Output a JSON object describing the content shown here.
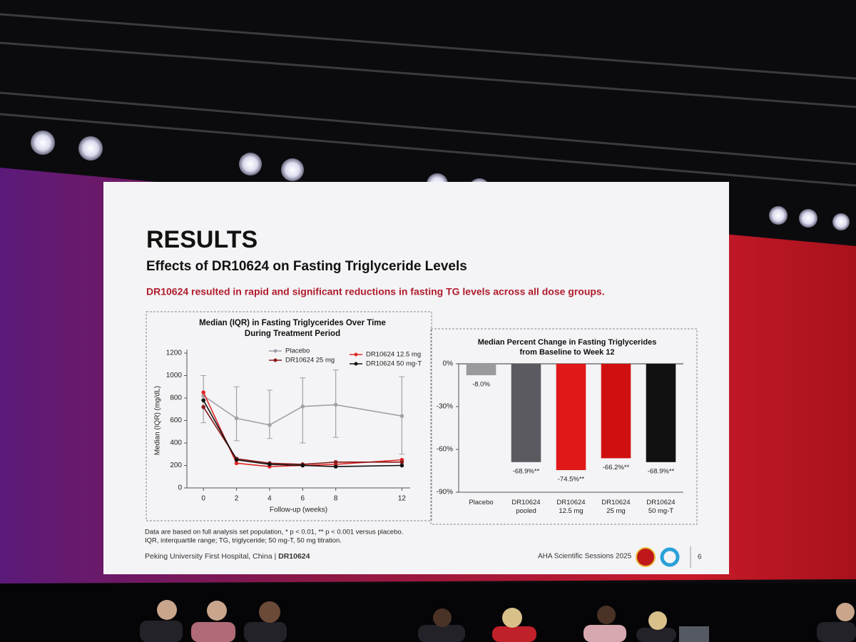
{
  "slide": {
    "heading": "RESULTS",
    "subtitle": "Effects of DR10624 on Fasting Triglyceride Levels",
    "highlight": "DR10624 resulted in rapid and significant reductions in fasting TG levels across all dose groups.",
    "footnotes": [
      "Data are based on full analysis set population, * p < 0.01, ** p < 0.001 versus placebo.",
      "IQR, interquartile range; TG, triglyceride; 50 mg-T, 50 mg titration."
    ],
    "footer_left": "Peking University First Hospital, China | ",
    "footer_left_bold": "DR10624",
    "footer_right": "AHA Scientific Sessions 2025",
    "page_number": "6"
  },
  "chart_data": [
    {
      "type": "line",
      "title": "Median (IQR) in Fasting Triglycerides Over Time",
      "subtitle": "During Treatment Period",
      "x_label": "Follow-up (weeks)",
      "y_label": "Median (IQR) (mg/dL)",
      "x": [
        0,
        2,
        4,
        6,
        8,
        12
      ],
      "xlim": [
        -1,
        12.5
      ],
      "xticks": [
        0,
        2,
        4,
        6,
        8,
        12
      ],
      "ylim": [
        0,
        1200
      ],
      "yticks": [
        0,
        200,
        400,
        600,
        800,
        1000,
        1200
      ],
      "series": [
        {
          "name": "Placebo",
          "color": "#a0a0a8",
          "values": [
            820,
            620,
            560,
            725,
            740,
            640
          ],
          "lower": [
            580,
            420,
            440,
            400,
            450,
            300
          ],
          "upper": [
            1000,
            900,
            870,
            980,
            1050,
            990
          ]
        },
        {
          "name": "DR10624 12.5 mg",
          "color": "#e02828",
          "values": [
            850,
            220,
            190,
            200,
            210,
            250
          ]
        },
        {
          "name": "DR10624 25 mg",
          "color": "#8b1a1a",
          "values": [
            720,
            260,
            220,
            210,
            230,
            230
          ]
        },
        {
          "name": "DR10624 50 mg-T",
          "color": "#111111",
          "values": [
            780,
            250,
            210,
            200,
            190,
            200
          ]
        }
      ]
    },
    {
      "type": "bar",
      "title": "Median Percent Change in Fasting Triglycerides",
      "subtitle": "from Baseline to Week 12",
      "categories": [
        "Placebo",
        "DR10624 pooled",
        "DR10624 12.5 mg",
        "DR10624 25 mg",
        "DR10624 50 mg-T"
      ],
      "values": [
        -8.0,
        -68.9,
        -74.5,
        -66.2,
        -68.9
      ],
      "value_labels": [
        "-8.0%",
        "-68.9%**",
        "-74.5%**",
        "-66.2%**",
        "-68.9%**"
      ],
      "colors": [
        "#9a9a9e",
        "#5a5a60",
        "#e01818",
        "#d01010",
        "#111111"
      ],
      "ylim": [
        -90,
        0
      ],
      "yticks": [
        {
          "value": 0,
          "label": "0%"
        },
        {
          "value": -30,
          "label": "-30%"
        },
        {
          "value": -60,
          "label": "-60%"
        },
        {
          "value": -90,
          "label": "-90%"
        }
      ]
    }
  ]
}
